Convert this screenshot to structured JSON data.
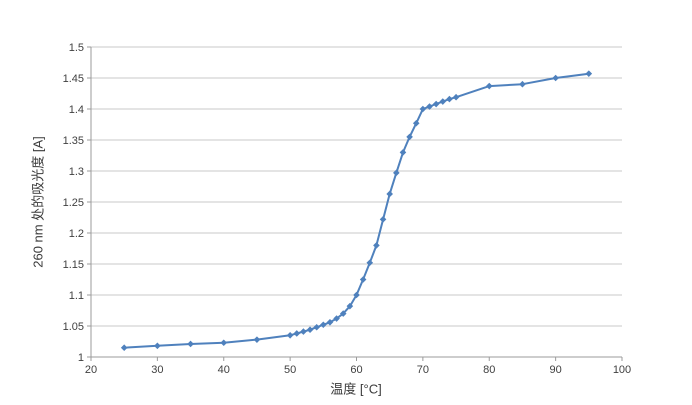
{
  "page": {
    "background": "#ffffff"
  },
  "chart_data": {
    "type": "line",
    "title": "",
    "xlabel": "温度 [°C]",
    "ylabel": "260 nm 处的吸光度 [A]",
    "xlim": [
      20,
      100
    ],
    "ylim": [
      1.0,
      1.5
    ],
    "x_ticks": [
      20,
      30,
      40,
      50,
      60,
      70,
      80,
      90,
      100
    ],
    "x_tick_labels": [
      "20",
      "30",
      "40",
      "50",
      "60",
      "70",
      "80",
      "90",
      "100"
    ],
    "y_ticks": [
      1,
      1.05,
      1.1,
      1.15,
      1.2,
      1.25,
      1.3,
      1.35,
      1.4,
      1.45,
      1.5
    ],
    "y_tick_labels": [
      "1",
      "1.05",
      "1.1",
      "1.15",
      "1.2",
      "1.25",
      "1.3",
      "1.35",
      "1.4",
      "1.45",
      "1.5"
    ],
    "grid": "horizontal-only",
    "legend": "none",
    "series": [
      {
        "name": "absorbance-vs-temperature",
        "color": "#4F81BD",
        "marker": "diamond",
        "line_width": 2,
        "points": [
          [
            25,
            1.015
          ],
          [
            30,
            1.018
          ],
          [
            35,
            1.021
          ],
          [
            40,
            1.023
          ],
          [
            45,
            1.028
          ],
          [
            50,
            1.035
          ],
          [
            51,
            1.038
          ],
          [
            52,
            1.041
          ],
          [
            53,
            1.044
          ],
          [
            54,
            1.048
          ],
          [
            55,
            1.052
          ],
          [
            56,
            1.056
          ],
          [
            57,
            1.062
          ],
          [
            58,
            1.07
          ],
          [
            59,
            1.082
          ],
          [
            60,
            1.1
          ],
          [
            61,
            1.125
          ],
          [
            62,
            1.152
          ],
          [
            63,
            1.18
          ],
          [
            64,
            1.222
          ],
          [
            65,
            1.263
          ],
          [
            66,
            1.297
          ],
          [
            67,
            1.33
          ],
          [
            68,
            1.355
          ],
          [
            69,
            1.377
          ],
          [
            70,
            1.4
          ],
          [
            71,
            1.404
          ],
          [
            72,
            1.408
          ],
          [
            73,
            1.412
          ],
          [
            74,
            1.416
          ],
          [
            75,
            1.419
          ],
          [
            80,
            1.437
          ],
          [
            85,
            1.44
          ],
          [
            90,
            1.45
          ],
          [
            95,
            1.457
          ]
        ]
      }
    ],
    "styles": {
      "grid_color": "#c8c8c8",
      "axis_color": "#9b9b9b",
      "tick_label_color": "#404040",
      "axis_title_color": "#3a3a3a",
      "tick_label_size": 11
    }
  }
}
